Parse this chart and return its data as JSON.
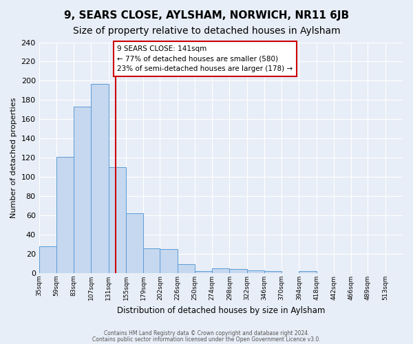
{
  "title": "9, SEARS CLOSE, AYLSHAM, NORWICH, NR11 6JB",
  "subtitle": "Size of property relative to detached houses in Aylsham",
  "xlabel": "Distribution of detached houses by size in Aylsham",
  "ylabel": "Number of detached properties",
  "bar_labels": [
    "35sqm",
    "59sqm",
    "83sqm",
    "107sqm",
    "131sqm",
    "155sqm",
    "179sqm",
    "202sqm",
    "226sqm",
    "250sqm",
    "274sqm",
    "298sqm",
    "322sqm",
    "346sqm",
    "370sqm",
    "394sqm",
    "418sqm",
    "442sqm",
    "466sqm",
    "489sqm",
    "513sqm"
  ],
  "bar_values": [
    28,
    121,
    173,
    197,
    110,
    62,
    26,
    25,
    9,
    2,
    5,
    4,
    3,
    2,
    0,
    2,
    0,
    0,
    0,
    0,
    0
  ],
  "bar_color": "#c5d8f0",
  "bar_edge_color": "#5b9bd5",
  "vline_x": 141,
  "bin_edges": [
    35,
    59,
    83,
    107,
    131,
    155,
    179,
    202,
    226,
    250,
    274,
    298,
    322,
    346,
    370,
    394,
    418,
    442,
    466,
    489,
    513,
    537
  ],
  "ylim": [
    0,
    240
  ],
  "yticks": [
    0,
    20,
    40,
    60,
    80,
    100,
    120,
    140,
    160,
    180,
    200,
    220,
    240
  ],
  "annotation_title": "9 SEARS CLOSE: 141sqm",
  "annotation_line1": "← 77% of detached houses are smaller (580)",
  "annotation_line2": "23% of semi-detached houses are larger (178) →",
  "annotation_box_color": "#ffffff",
  "annotation_box_edge": "#cc0000",
  "vline_color": "#cc0000",
  "footer1": "Contains HM Land Registry data © Crown copyright and database right 2024.",
  "footer2": "Contains public sector information licensed under the Open Government Licence v3.0.",
  "background_color": "#e8eef7",
  "plot_background": "#e8eef7",
  "title_fontsize": 11,
  "subtitle_fontsize": 10
}
